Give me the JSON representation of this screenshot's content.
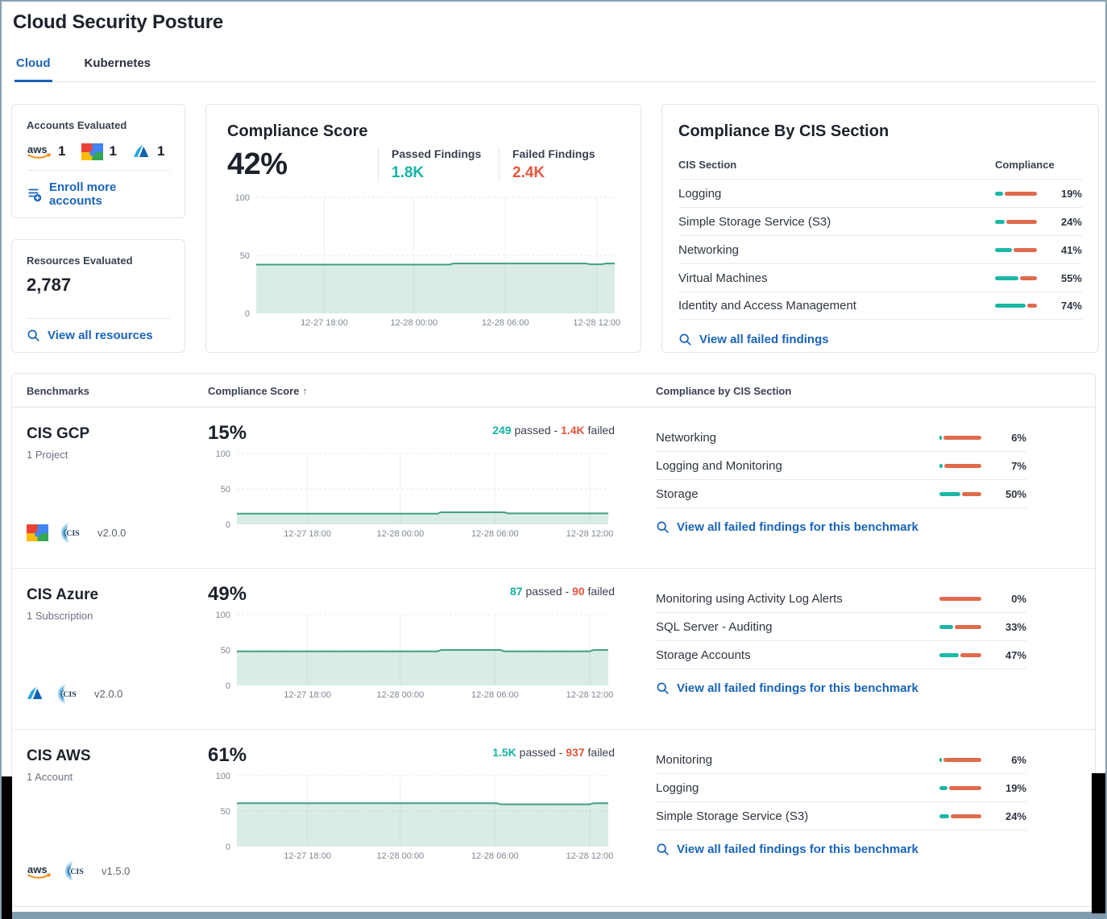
{
  "page": {
    "title": "Cloud Security Posture",
    "tabs": [
      {
        "label": "Cloud",
        "active": true
      },
      {
        "label": "Kubernetes",
        "active": false
      }
    ]
  },
  "strings": {
    "passed_sep": " passed - ",
    "failed_suffix": " failed"
  },
  "accounts_card": {
    "title": "Accounts Evaluated",
    "providers": [
      {
        "name": "aws",
        "count": "1"
      },
      {
        "name": "google-cloud",
        "count": "1"
      },
      {
        "name": "azure",
        "count": "1"
      }
    ],
    "enroll_link": "Enroll more accounts"
  },
  "resources_card": {
    "title": "Resources Evaluated",
    "count": "2,787",
    "view_link": "View all resources"
  },
  "score_card": {
    "title": "Compliance Score",
    "score": "42%",
    "passed_label": "Passed Findings",
    "passed_value": "1.8K",
    "failed_label": "Failed Findings",
    "failed_value": "2.4K"
  },
  "cis_card": {
    "title": "Compliance By CIS Section",
    "col_section": "CIS Section",
    "col_compliance": "Compliance",
    "rows": [
      {
        "label": "Logging",
        "pct": 19,
        "pct_label": "19%"
      },
      {
        "label": "Simple Storage Service (S3)",
        "pct": 24,
        "pct_label": "24%"
      },
      {
        "label": "Networking",
        "pct": 41,
        "pct_label": "41%"
      },
      {
        "label": "Virtual Machines",
        "pct": 55,
        "pct_label": "55%"
      },
      {
        "label": "Identity and Access Management",
        "pct": 74,
        "pct_label": "74%"
      }
    ],
    "view_link": "View all failed findings"
  },
  "benchmarks": {
    "col_benchmarks": "Benchmarks",
    "col_score": "Compliance Score",
    "sort_glyph": "↑",
    "col_sections": "Compliance by CIS Section",
    "rows": [
      {
        "name": "CIS GCP",
        "scope": "1 Project",
        "provider": "google-cloud",
        "version": "v2.0.0",
        "score": "15%",
        "passed_value": "249",
        "failed_value": "1.4K",
        "sections": [
          {
            "label": "Networking",
            "pct": 6,
            "pct_label": "6%"
          },
          {
            "label": "Logging and Monitoring",
            "pct": 7,
            "pct_label": "7%"
          },
          {
            "label": "Storage",
            "pct": 50,
            "pct_label": "50%"
          }
        ],
        "view_link": "View all failed findings for this benchmark"
      },
      {
        "name": "CIS Azure",
        "scope": "1 Subscription",
        "provider": "azure",
        "version": "v2.0.0",
        "score": "49%",
        "passed_value": "87",
        "failed_value": "90",
        "sections": [
          {
            "label": "Monitoring using Activity Log Alerts",
            "pct": 0,
            "pct_label": "0%"
          },
          {
            "label": "SQL Server - Auditing",
            "pct": 33,
            "pct_label": "33%"
          },
          {
            "label": "Storage Accounts",
            "pct": 47,
            "pct_label": "47%"
          }
        ],
        "view_link": "View all failed findings for this benchmark"
      },
      {
        "name": "CIS AWS",
        "scope": "1 Account",
        "provider": "aws",
        "version": "v1.5.0",
        "score": "61%",
        "passed_value": "1.5K",
        "failed_value": "937",
        "sections": [
          {
            "label": "Monitoring",
            "pct": 6,
            "pct_label": "6%"
          },
          {
            "label": "Logging",
            "pct": 19,
            "pct_label": "19%"
          },
          {
            "label": "Simple Storage Service (S3)",
            "pct": 24,
            "pct_label": "24%"
          }
        ],
        "view_link": "View all failed findings for this benchmark"
      }
    ]
  },
  "colors": {
    "accent_teal": "#16b3a2",
    "accent_orange": "#e4573d",
    "bar_teal": "#1cb7a6",
    "bar_orange": "#e06a4c",
    "link_blue": "#1a64ba",
    "chart_line": "#42a080",
    "chart_fill": "rgba(66,160,128,0.20)",
    "axis_text": "#7e8795",
    "grid_dash": "#e3e7ec",
    "grid_vert": "#edf0f4"
  },
  "chart_data": [
    {
      "name": "compliance-score-trend",
      "type": "area",
      "ylim": [
        0,
        100
      ],
      "y_ticks": [
        0,
        50,
        100
      ],
      "x_tick_labels": [
        "12-27 18:00",
        "12-28 00:00",
        "12-28 06:00",
        "12-28 12:00"
      ],
      "x_tick_positions": [
        0.19,
        0.44,
        0.695,
        0.95
      ],
      "points": [
        [
          0,
          42
        ],
        [
          0.54,
          42
        ],
        [
          0.55,
          43
        ],
        [
          0.92,
          43
        ],
        [
          0.93,
          42.3
        ],
        [
          0.965,
          42.3
        ],
        [
          0.975,
          43
        ],
        [
          1,
          43
        ]
      ]
    },
    {
      "name": "cis-gcp-trend",
      "type": "area",
      "ylim": [
        0,
        100
      ],
      "y_ticks": [
        0,
        50,
        100
      ],
      "x_tick_labels": [
        "12-27 18:00",
        "12-28 00:00",
        "12-28 06:00",
        "12-28 12:00"
      ],
      "x_tick_positions": [
        0.19,
        0.44,
        0.695,
        0.95
      ],
      "points": [
        [
          0,
          15
        ],
        [
          0.54,
          15
        ],
        [
          0.55,
          17
        ],
        [
          0.72,
          17
        ],
        [
          0.73,
          15.5
        ],
        [
          1,
          15.5
        ]
      ]
    },
    {
      "name": "cis-azure-trend",
      "type": "area",
      "ylim": [
        0,
        100
      ],
      "y_ticks": [
        0,
        50,
        100
      ],
      "x_tick_labels": [
        "12-27 18:00",
        "12-28 00:00",
        "12-28 06:00",
        "12-28 12:00"
      ],
      "x_tick_positions": [
        0.19,
        0.44,
        0.695,
        0.95
      ],
      "points": [
        [
          0,
          48
        ],
        [
          0.54,
          48
        ],
        [
          0.55,
          50
        ],
        [
          0.71,
          50
        ],
        [
          0.72,
          48
        ],
        [
          0.95,
          48
        ],
        [
          0.96,
          50
        ],
        [
          1,
          50
        ]
      ]
    },
    {
      "name": "cis-aws-trend",
      "type": "area",
      "ylim": [
        0,
        100
      ],
      "y_ticks": [
        0,
        50,
        100
      ],
      "x_tick_labels": [
        "12-27 18:00",
        "12-28 00:00",
        "12-28 06:00",
        "12-28 12:00"
      ],
      "x_tick_positions": [
        0.19,
        0.44,
        0.695,
        0.95
      ],
      "points": [
        [
          0,
          61
        ],
        [
          0.7,
          61
        ],
        [
          0.71,
          59.5
        ],
        [
          0.95,
          59.5
        ],
        [
          0.96,
          61
        ],
        [
          1,
          61
        ]
      ]
    }
  ]
}
